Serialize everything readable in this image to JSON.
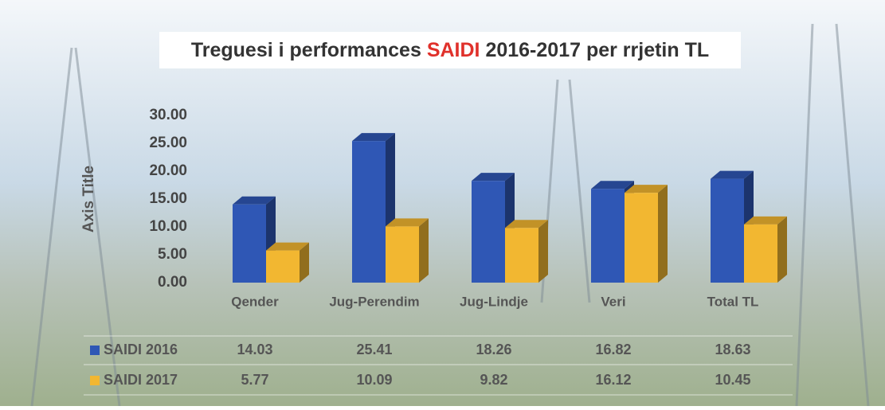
{
  "chart_data": {
    "type": "bar3d",
    "title": [
      "Treguesi i performances ",
      "SAIDI",
      " 2016-2017 per rrjetin TL"
    ],
    "y_axis_label": "Axis Title",
    "categories": [
      "Qender",
      "Jug-Perendim",
      "Jug-Lindje",
      "Veri",
      "Total TL"
    ],
    "series": [
      {
        "name": "SAIDI 2016",
        "color": "#2f57b5",
        "values": [
          14.03,
          25.41,
          18.26,
          16.82,
          18.63
        ]
      },
      {
        "name": "SAIDI 2017",
        "color": "#f2b731",
        "values": [
          5.77,
          10.09,
          9.82,
          16.12,
          10.45
        ]
      }
    ],
    "ylim": [
      0,
      30
    ],
    "yticks": [
      {
        "value": 0,
        "label": "0.00"
      },
      {
        "value": 5,
        "label": "5.00"
      },
      {
        "value": 10,
        "label": "10.00"
      },
      {
        "value": 15,
        "label": "15.00"
      },
      {
        "value": 20,
        "label": "20.00"
      },
      {
        "value": 25,
        "label": "25.00"
      },
      {
        "value": 30,
        "label": "30.00"
      }
    ],
    "data_table": true
  }
}
